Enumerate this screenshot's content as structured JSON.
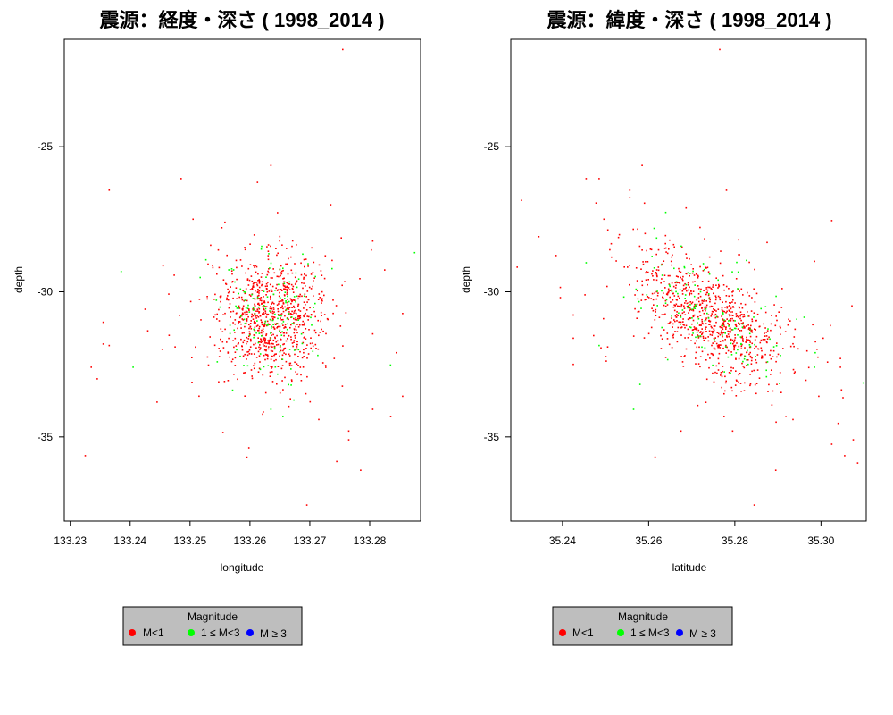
{
  "chart_data": [
    {
      "type": "scatter",
      "title": "震源：経度・深さ ( 1998_2014 )",
      "xlabel": "longitude",
      "ylabel": "depth",
      "xlim": [
        133.229,
        133.2885
      ],
      "ylim": [
        -37.9,
        -21.3
      ],
      "x_ticks": [
        133.23,
        133.24,
        133.25,
        133.26,
        133.27,
        133.28
      ],
      "x_tick_labels": [
        "133.23",
        "133.24",
        "133.25",
        "133.26",
        "133.27",
        "133.28"
      ],
      "y_ticks": [
        -25,
        -30,
        -35
      ],
      "y_tick_labels": [
        "-25",
        "-30",
        "-35"
      ],
      "cluster": {
        "center": [
          133.2635,
          -30.8
        ],
        "spread": [
          0.0042,
          1.05
        ],
        "n_red": 880,
        "n_green": 140
      },
      "outliers": [
        {
          "x": 133.2755,
          "y": -21.65,
          "m": "red"
        },
        {
          "x": 133.2365,
          "y": -26.5,
          "m": "red"
        },
        {
          "x": 133.2485,
          "y": -26.1,
          "m": "red"
        },
        {
          "x": 133.2635,
          "y": -25.65,
          "m": "red"
        },
        {
          "x": 133.2735,
          "y": -27.0,
          "m": "red"
        },
        {
          "x": 133.2455,
          "y": -29.1,
          "m": "red"
        },
        {
          "x": 133.2385,
          "y": -29.3,
          "m": "green"
        },
        {
          "x": 133.2355,
          "y": -31.05,
          "m": "red"
        },
        {
          "x": 133.2355,
          "y": -31.8,
          "m": "red"
        },
        {
          "x": 133.2365,
          "y": -31.85,
          "m": "red"
        },
        {
          "x": 133.2425,
          "y": -30.6,
          "m": "red"
        },
        {
          "x": 133.2405,
          "y": -32.6,
          "m": "green"
        },
        {
          "x": 133.2335,
          "y": -32.6,
          "m": "red"
        },
        {
          "x": 133.2345,
          "y": -33.0,
          "m": "red"
        },
        {
          "x": 133.2445,
          "y": -33.8,
          "m": "red"
        },
        {
          "x": 133.2325,
          "y": -35.65,
          "m": "red"
        },
        {
          "x": 133.2595,
          "y": -35.7,
          "m": "red"
        },
        {
          "x": 133.2555,
          "y": -34.85,
          "m": "red"
        },
        {
          "x": 133.2745,
          "y": -35.85,
          "m": "red"
        },
        {
          "x": 133.2785,
          "y": -36.15,
          "m": "red"
        },
        {
          "x": 133.2765,
          "y": -35.1,
          "m": "red"
        },
        {
          "x": 133.2765,
          "y": -34.8,
          "m": "red"
        },
        {
          "x": 133.2695,
          "y": -37.35,
          "m": "red"
        },
        {
          "x": 133.2875,
          "y": -28.65,
          "m": "green"
        },
        {
          "x": 133.2855,
          "y": -30.75,
          "m": "red"
        },
        {
          "x": 133.2845,
          "y": -32.1,
          "m": "red"
        },
        {
          "x": 133.2855,
          "y": -33.6,
          "m": "red"
        },
        {
          "x": 133.2835,
          "y": -34.3,
          "m": "red"
        },
        {
          "x": 133.2805,
          "y": -34.05,
          "m": "red"
        },
        {
          "x": 133.2825,
          "y": -29.25,
          "m": "red"
        },
        {
          "x": 133.2805,
          "y": -31.45,
          "m": "red"
        },
        {
          "x": 133.2805,
          "y": -28.25,
          "m": "red"
        },
        {
          "x": 133.2715,
          "y": -34.4,
          "m": "red"
        },
        {
          "x": 133.2655,
          "y": -34.3,
          "m": "green"
        },
        {
          "x": 133.2665,
          "y": -33.95,
          "m": "red"
        },
        {
          "x": 133.2635,
          "y": -34.05,
          "m": "green"
        },
        {
          "x": 133.2475,
          "y": -31.9,
          "m": "red"
        },
        {
          "x": 133.2465,
          "y": -31.5,
          "m": "red"
        },
        {
          "x": 133.2505,
          "y": -27.5,
          "m": "red"
        }
      ]
    },
    {
      "type": "scatter",
      "title": "震源：緯度・深さ ( 1998_2014 )",
      "xlabel": "latitude",
      "ylabel": "depth",
      "xlim": [
        35.228,
        35.3105
      ],
      "ylim": [
        -37.9,
        -21.3
      ],
      "x_ticks": [
        35.24,
        35.26,
        35.28,
        35.3
      ],
      "x_tick_labels": [
        "35.24",
        "35.26",
        "35.28",
        "35.30"
      ],
      "y_ticks": [
        -25,
        -30,
        -35
      ],
      "y_tick_labels": [
        "-25",
        "-30",
        "-35"
      ],
      "cluster": {
        "center": [
          35.274,
          -30.9
        ],
        "spread": [
          0.0085,
          1.05
        ],
        "corr": 0.55,
        "n_red": 880,
        "n_green": 140
      },
      "outliers": [
        {
          "x": 35.2765,
          "y": -21.65,
          "m": "red"
        },
        {
          "x": 35.2305,
          "y": -26.85,
          "m": "red"
        },
        {
          "x": 35.2345,
          "y": -28.1,
          "m": "red"
        },
        {
          "x": 35.2385,
          "y": -28.75,
          "m": "red"
        },
        {
          "x": 35.2395,
          "y": -29.85,
          "m": "red"
        },
        {
          "x": 35.2395,
          "y": -30.2,
          "m": "red"
        },
        {
          "x": 35.2295,
          "y": -29.15,
          "m": "red"
        },
        {
          "x": 35.2425,
          "y": -30.8,
          "m": "red"
        },
        {
          "x": 35.2425,
          "y": -31.6,
          "m": "red"
        },
        {
          "x": 35.2425,
          "y": -32.5,
          "m": "red"
        },
        {
          "x": 35.2455,
          "y": -26.1,
          "m": "red"
        },
        {
          "x": 35.2485,
          "y": -26.1,
          "m": "red"
        },
        {
          "x": 35.2455,
          "y": -29.0,
          "m": "green"
        },
        {
          "x": 35.2485,
          "y": -31.85,
          "m": "green"
        },
        {
          "x": 35.2505,
          "y": -31.9,
          "m": "red"
        },
        {
          "x": 35.2585,
          "y": -25.65,
          "m": "red"
        },
        {
          "x": 35.2565,
          "y": -34.05,
          "m": "green"
        },
        {
          "x": 35.2615,
          "y": -35.7,
          "m": "red"
        },
        {
          "x": 35.2675,
          "y": -34.8,
          "m": "red"
        },
        {
          "x": 35.2775,
          "y": -34.3,
          "m": "red"
        },
        {
          "x": 35.2795,
          "y": -34.8,
          "m": "red"
        },
        {
          "x": 35.2845,
          "y": -37.35,
          "m": "red"
        },
        {
          "x": 35.2895,
          "y": -36.15,
          "m": "red"
        },
        {
          "x": 35.2935,
          "y": -34.4,
          "m": "red"
        },
        {
          "x": 35.2965,
          "y": -33.05,
          "m": "red"
        },
        {
          "x": 35.2995,
          "y": -33.6,
          "m": "red"
        },
        {
          "x": 35.3025,
          "y": -35.25,
          "m": "red"
        },
        {
          "x": 35.3045,
          "y": -32.6,
          "m": "red"
        },
        {
          "x": 35.3045,
          "y": -32.3,
          "m": "red"
        },
        {
          "x": 35.3055,
          "y": -35.65,
          "m": "red"
        },
        {
          "x": 35.3075,
          "y": -35.1,
          "m": "red"
        },
        {
          "x": 35.3085,
          "y": -35.9,
          "m": "red"
        },
        {
          "x": 35.3025,
          "y": -27.55,
          "m": "red"
        },
        {
          "x": 35.2985,
          "y": -28.95,
          "m": "red"
        },
        {
          "x": 35.2985,
          "y": -32.6,
          "m": "green"
        },
        {
          "x": 35.3005,
          "y": -31.6,
          "m": "red"
        },
        {
          "x": 35.2905,
          "y": -31.2,
          "m": "red"
        },
        {
          "x": 35.2875,
          "y": -28.3,
          "m": "red"
        }
      ]
    }
  ],
  "legend": {
    "title": "Magnitude",
    "entries": [
      {
        "label": "M<1",
        "color": "#ff0000"
      },
      {
        "label": "1 ≤ M<3",
        "color": "#00ff00"
      },
      {
        "label": "M ≥ 3",
        "color": "#0000ff"
      }
    ],
    "background": "#bebebe"
  },
  "colors": {
    "red": "#ff0000",
    "green": "#00ff00",
    "blue": "#0000ff"
  }
}
